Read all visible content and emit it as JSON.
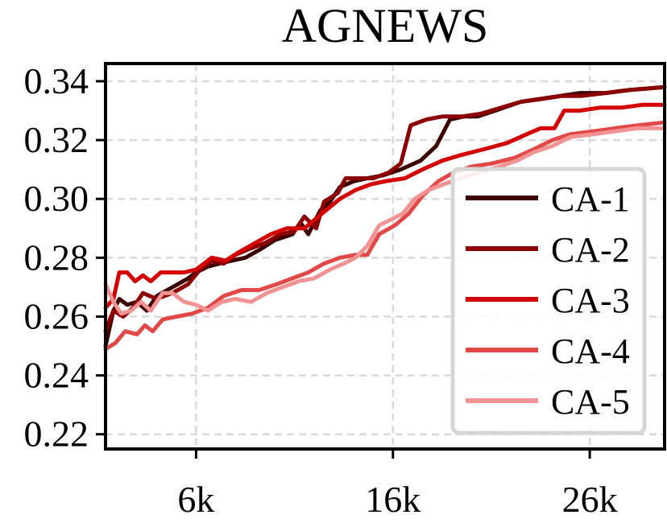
{
  "chart_data": {
    "type": "line",
    "title": "AGNEWS",
    "xlabel": "",
    "ylabel": "",
    "xlim": [
      1400,
      29800
    ],
    "ylim": [
      0.215,
      0.346
    ],
    "xticks": [
      6000,
      16000,
      26000
    ],
    "xtick_labels": [
      "6k",
      "16k",
      "26k"
    ],
    "yticks": [
      0.22,
      0.24,
      0.26,
      0.28,
      0.3,
      0.32,
      0.34
    ],
    "ytick_labels": [
      "0.22",
      "0.24",
      "0.26",
      "0.28",
      "0.30",
      "0.32",
      "0.34"
    ],
    "grid": true,
    "legend_position": "lower-right",
    "series": [
      {
        "name": "CA-1",
        "color": "#3d0000",
        "points": [
          [
            1400,
            0.25
          ],
          [
            1800,
            0.262
          ],
          [
            2100,
            0.266
          ],
          [
            2500,
            0.264
          ],
          [
            3000,
            0.265
          ],
          [
            3500,
            0.262
          ],
          [
            4000,
            0.267
          ],
          [
            4800,
            0.27
          ],
          [
            5600,
            0.273
          ],
          [
            6000,
            0.275
          ],
          [
            6600,
            0.277
          ],
          [
            7200,
            0.278
          ],
          [
            7800,
            0.279
          ],
          [
            8500,
            0.28
          ],
          [
            9300,
            0.283
          ],
          [
            10000,
            0.286
          ],
          [
            10900,
            0.288
          ],
          [
            11300,
            0.292
          ],
          [
            11700,
            0.288
          ],
          [
            12300,
            0.296
          ],
          [
            12800,
            0.299
          ],
          [
            13300,
            0.304
          ],
          [
            14000,
            0.306
          ],
          [
            14700,
            0.307
          ],
          [
            15500,
            0.308
          ],
          [
            16400,
            0.31
          ],
          [
            17400,
            0.313
          ],
          [
            18200,
            0.318
          ],
          [
            18900,
            0.327
          ],
          [
            19600,
            0.328
          ],
          [
            20300,
            0.328
          ],
          [
            21200,
            0.33
          ],
          [
            22500,
            0.333
          ],
          [
            23500,
            0.334
          ],
          [
            24500,
            0.335
          ],
          [
            25500,
            0.336
          ],
          [
            26800,
            0.336
          ],
          [
            28000,
            0.337
          ],
          [
            29800,
            0.338
          ]
        ]
      },
      {
        "name": "CA-2",
        "color": "#8b0000",
        "points": [
          [
            1400,
            0.255
          ],
          [
            1800,
            0.262
          ],
          [
            2300,
            0.26
          ],
          [
            2800,
            0.263
          ],
          [
            3300,
            0.268
          ],
          [
            4000,
            0.266
          ],
          [
            4800,
            0.268
          ],
          [
            5600,
            0.271
          ],
          [
            6200,
            0.276
          ],
          [
            6800,
            0.279
          ],
          [
            7400,
            0.278
          ],
          [
            8000,
            0.281
          ],
          [
            8700,
            0.283
          ],
          [
            9500,
            0.285
          ],
          [
            10300,
            0.288
          ],
          [
            11000,
            0.289
          ],
          [
            11500,
            0.294
          ],
          [
            12100,
            0.29
          ],
          [
            12500,
            0.299
          ],
          [
            13200,
            0.302
          ],
          [
            13600,
            0.307
          ],
          [
            14200,
            0.307
          ],
          [
            15000,
            0.307
          ],
          [
            15800,
            0.309
          ],
          [
            16400,
            0.312
          ],
          [
            16900,
            0.325
          ],
          [
            17700,
            0.327
          ],
          [
            18500,
            0.328
          ],
          [
            19500,
            0.328
          ],
          [
            20500,
            0.329
          ],
          [
            21500,
            0.331
          ],
          [
            22500,
            0.333
          ],
          [
            23600,
            0.334
          ],
          [
            24600,
            0.335
          ],
          [
            25600,
            0.335
          ],
          [
            26800,
            0.336
          ],
          [
            28000,
            0.337
          ],
          [
            29800,
            0.338
          ]
        ]
      },
      {
        "name": "CA-3",
        "color": "#d40000",
        "points": [
          [
            1400,
            0.263
          ],
          [
            1800,
            0.266
          ],
          [
            2100,
            0.275
          ],
          [
            2500,
            0.275
          ],
          [
            2900,
            0.272
          ],
          [
            3300,
            0.274
          ],
          [
            3700,
            0.272
          ],
          [
            4200,
            0.275
          ],
          [
            4800,
            0.275
          ],
          [
            5400,
            0.275
          ],
          [
            6000,
            0.276
          ],
          [
            6800,
            0.28
          ],
          [
            7500,
            0.279
          ],
          [
            8200,
            0.282
          ],
          [
            9000,
            0.285
          ],
          [
            9800,
            0.288
          ],
          [
            10600,
            0.29
          ],
          [
            11500,
            0.29
          ],
          [
            12400,
            0.295
          ],
          [
            13300,
            0.3
          ],
          [
            14100,
            0.303
          ],
          [
            14900,
            0.305
          ],
          [
            15600,
            0.306
          ],
          [
            16600,
            0.307
          ],
          [
            17500,
            0.31
          ],
          [
            18500,
            0.313
          ],
          [
            19500,
            0.315
          ],
          [
            20700,
            0.317
          ],
          [
            21800,
            0.319
          ],
          [
            22800,
            0.322
          ],
          [
            23500,
            0.324
          ],
          [
            24200,
            0.324
          ],
          [
            24700,
            0.33
          ],
          [
            25500,
            0.33
          ],
          [
            26500,
            0.331
          ],
          [
            27600,
            0.331
          ],
          [
            28700,
            0.332
          ],
          [
            29800,
            0.332
          ]
        ]
      },
      {
        "name": "CA-4",
        "color": "#e24848",
        "points": [
          [
            1400,
            0.249
          ],
          [
            1900,
            0.251
          ],
          [
            2400,
            0.255
          ],
          [
            3000,
            0.254
          ],
          [
            3400,
            0.257
          ],
          [
            3800,
            0.255
          ],
          [
            4300,
            0.259
          ],
          [
            5000,
            0.26
          ],
          [
            5800,
            0.261
          ],
          [
            6600,
            0.263
          ],
          [
            7400,
            0.267
          ],
          [
            8300,
            0.269
          ],
          [
            9200,
            0.269
          ],
          [
            10100,
            0.271
          ],
          [
            10900,
            0.273
          ],
          [
            11700,
            0.275
          ],
          [
            12500,
            0.278
          ],
          [
            13300,
            0.28
          ],
          [
            14100,
            0.281
          ],
          [
            14700,
            0.281
          ],
          [
            15300,
            0.288
          ],
          [
            16100,
            0.291
          ],
          [
            16800,
            0.295
          ],
          [
            17500,
            0.301
          ],
          [
            18300,
            0.306
          ],
          [
            19100,
            0.309
          ],
          [
            20000,
            0.311
          ],
          [
            21000,
            0.312
          ],
          [
            22200,
            0.314
          ],
          [
            23200,
            0.317
          ],
          [
            24100,
            0.32
          ],
          [
            25000,
            0.322
          ],
          [
            26200,
            0.323
          ],
          [
            27300,
            0.324
          ],
          [
            28400,
            0.325
          ],
          [
            29800,
            0.326
          ]
        ]
      },
      {
        "name": "CA-5",
        "color": "#f29393",
        "points": [
          [
            1400,
            0.271
          ],
          [
            1800,
            0.265
          ],
          [
            2200,
            0.261
          ],
          [
            2700,
            0.262
          ],
          [
            3200,
            0.265
          ],
          [
            3700,
            0.262
          ],
          [
            4300,
            0.268
          ],
          [
            4800,
            0.268
          ],
          [
            5400,
            0.265
          ],
          [
            6000,
            0.264
          ],
          [
            6600,
            0.262
          ],
          [
            7300,
            0.265
          ],
          [
            8000,
            0.266
          ],
          [
            8800,
            0.265
          ],
          [
            9600,
            0.268
          ],
          [
            10400,
            0.27
          ],
          [
            11200,
            0.272
          ],
          [
            12000,
            0.273
          ],
          [
            12800,
            0.276
          ],
          [
            13500,
            0.278
          ],
          [
            14100,
            0.28
          ],
          [
            14700,
            0.284
          ],
          [
            15300,
            0.291
          ],
          [
            15900,
            0.293
          ],
          [
            16500,
            0.295
          ],
          [
            17100,
            0.3
          ],
          [
            17800,
            0.303
          ],
          [
            18600,
            0.305
          ],
          [
            19400,
            0.307
          ],
          [
            20400,
            0.309
          ],
          [
            21400,
            0.311
          ],
          [
            22300,
            0.313
          ],
          [
            23200,
            0.316
          ],
          [
            24100,
            0.318
          ],
          [
            25000,
            0.321
          ],
          [
            26200,
            0.322
          ],
          [
            27300,
            0.323
          ],
          [
            28400,
            0.324
          ],
          [
            29800,
            0.324
          ]
        ]
      }
    ]
  }
}
